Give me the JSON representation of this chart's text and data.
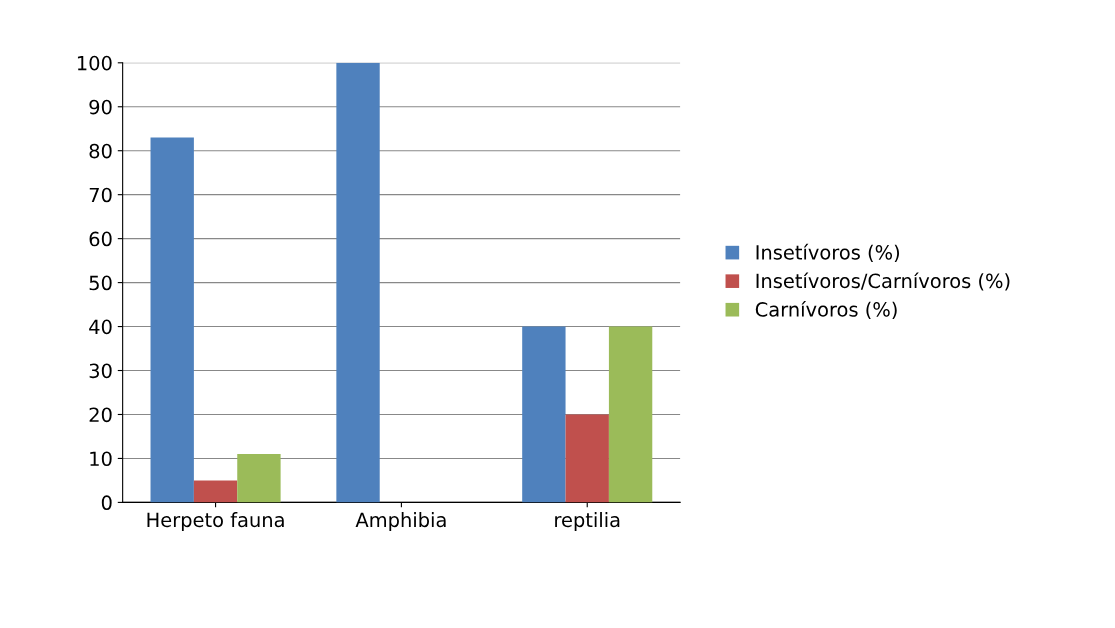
{
  "chart_data": {
    "type": "bar",
    "categories": [
      "Herpeto fauna",
      "Amphibia",
      "reptilia"
    ],
    "series": [
      {
        "name": "Insetívoros (%)",
        "color": "#4f81bd",
        "values": [
          83,
          100,
          40
        ]
      },
      {
        "name": "Insetívoros/Carnívoros (%)",
        "color": "#c0504d",
        "values": [
          5,
          0,
          20
        ]
      },
      {
        "name": "Carnívoros (%)",
        "color": "#9bbb59",
        "values": [
          11,
          0,
          40
        ]
      }
    ],
    "ylim": [
      0,
      100
    ],
    "yticks": [
      0,
      10,
      20,
      30,
      40,
      50,
      60,
      70,
      80,
      90,
      100
    ],
    "grid": "y",
    "legend": "right"
  }
}
